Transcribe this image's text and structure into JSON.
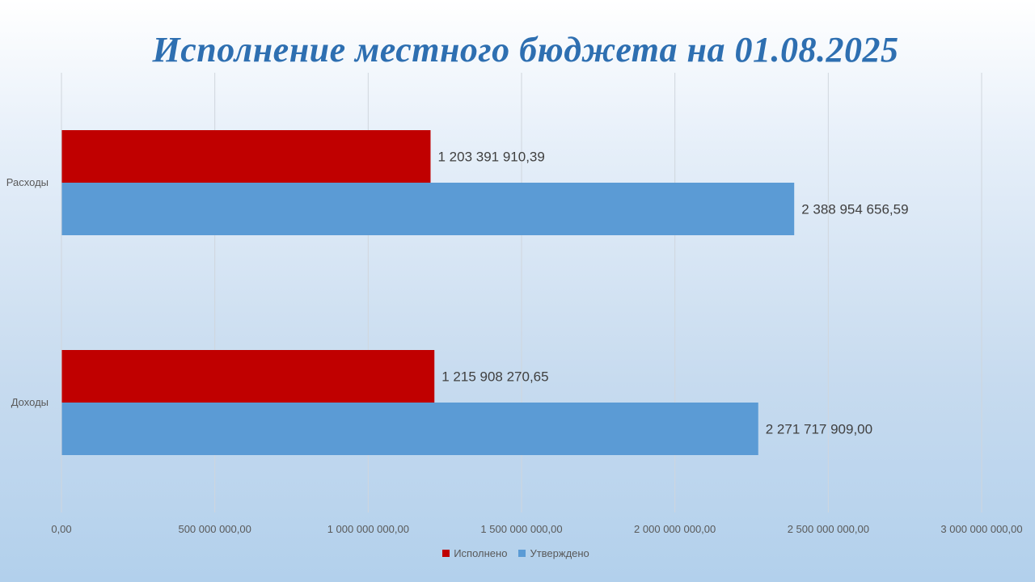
{
  "chart_data": {
    "type": "bar",
    "orientation": "horizontal",
    "title": "Исполнение местного бюджета на 01.08.2025",
    "categories": [
      "Доходы",
      "Расходы"
    ],
    "series": [
      {
        "name": "Утверждено",
        "color": "#5b9bd5",
        "values": [
          2271717909.0,
          2388954656.59
        ],
        "labels": [
          "2 271 717 909,00",
          "2 388 954 656,59"
        ]
      },
      {
        "name": "Исполнено",
        "color": "#c00000",
        "values": [
          1215908270.65,
          1203391910.39
        ],
        "labels": [
          "1 215 908 270,65",
          "1 203 391 910,39"
        ]
      }
    ],
    "xlim": [
      0,
      3000000000
    ],
    "x_ticks": [
      0,
      500000000,
      1000000000,
      1500000000,
      2000000000,
      2500000000,
      3000000000
    ],
    "x_tick_labels": [
      "0,00",
      "500 000 000,00",
      "1 000 000 000,00",
      "1 500 000 000,00",
      "2 000 000 000,00",
      "2 500 000 000,00",
      "3 000 000 000,00"
    ],
    "grid": "vertical",
    "legend": "bottom",
    "legend_order": [
      "Исполнено",
      "Утверждено"
    ]
  }
}
